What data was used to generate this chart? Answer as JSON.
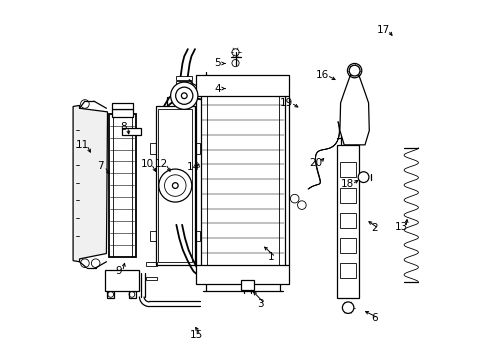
{
  "background_color": "#ffffff",
  "fig_width": 4.89,
  "fig_height": 3.6,
  "dpi": 100,
  "label_positions": {
    "1": [
      0.575,
      0.285,
      0.548,
      0.32
    ],
    "2": [
      0.862,
      0.365,
      0.838,
      0.39
    ],
    "3": [
      0.545,
      0.155,
      0.518,
      0.195
    ],
    "4": [
      0.425,
      0.755,
      0.455,
      0.755
    ],
    "5": [
      0.425,
      0.825,
      0.455,
      0.825
    ],
    "6": [
      0.862,
      0.115,
      0.828,
      0.138
    ],
    "7": [
      0.098,
      0.538,
      0.128,
      0.508
    ],
    "8": [
      0.163,
      0.648,
      0.178,
      0.618
    ],
    "9": [
      0.148,
      0.245,
      0.168,
      0.278
    ],
    "10": [
      0.228,
      0.545,
      0.258,
      0.515
    ],
    "11": [
      0.048,
      0.598,
      0.075,
      0.568
    ],
    "12": [
      0.268,
      0.545,
      0.298,
      0.515
    ],
    "13": [
      0.938,
      0.368,
      0.955,
      0.4
    ],
    "14": [
      0.358,
      0.535,
      0.375,
      0.555
    ],
    "15": [
      0.365,
      0.068,
      0.358,
      0.098
    ],
    "16": [
      0.718,
      0.792,
      0.762,
      0.775
    ],
    "17": [
      0.888,
      0.918,
      0.918,
      0.895
    ],
    "18": [
      0.788,
      0.488,
      0.825,
      0.505
    ],
    "19": [
      0.618,
      0.715,
      0.658,
      0.698
    ],
    "20": [
      0.698,
      0.548,
      0.728,
      0.568
    ]
  }
}
